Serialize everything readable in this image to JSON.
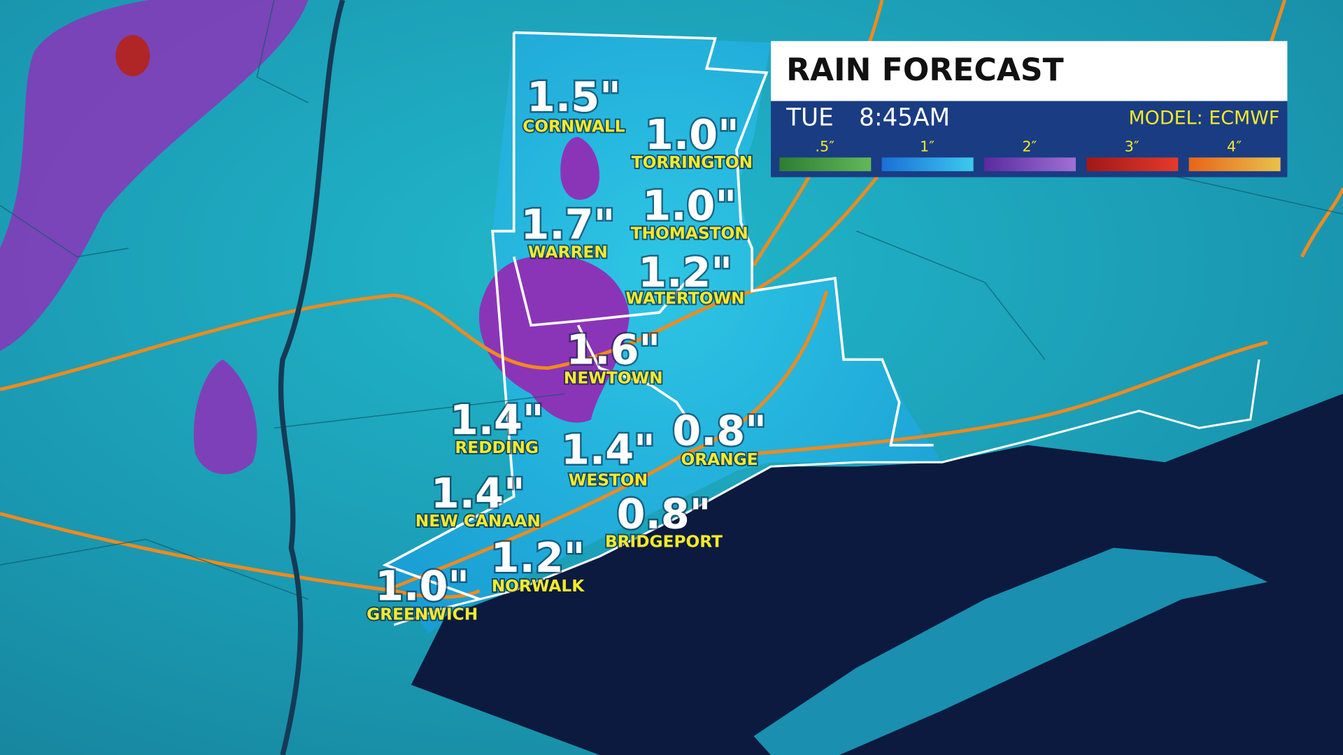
{
  "header": {
    "title": "RAIN FORECAST",
    "day": "TUE",
    "time": "8:45AM",
    "model": "MODEL: ECMWF"
  },
  "legend": [
    ".5″",
    "1″",
    "2″",
    "3″",
    "4″"
  ],
  "locations": [
    {
      "name": "CORNWALL",
      "amount": "1.5\""
    },
    {
      "name": "TORRINGTON",
      "amount": "1.0\""
    },
    {
      "name": "WARREN",
      "amount": "1.7\""
    },
    {
      "name": "THOMASTON",
      "amount": "1.0\""
    },
    {
      "name": "WATERTOWN",
      "amount": "1.2\""
    },
    {
      "name": "NEWTOWN",
      "amount": "1.6\""
    },
    {
      "name": "REDDING",
      "amount": "1.4\""
    },
    {
      "name": "WESTON",
      "amount": "1.4\""
    },
    {
      "name": "ORANGE",
      "amount": "0.8\""
    },
    {
      "name": "NEW CANAAN",
      "amount": "1.4\""
    },
    {
      "name": "BRIDGEPORT",
      "amount": "0.8\""
    },
    {
      "name": "NORWALK",
      "amount": "1.2\""
    },
    {
      "name": "GREENWICH",
      "amount": "1.0\""
    }
  ]
}
